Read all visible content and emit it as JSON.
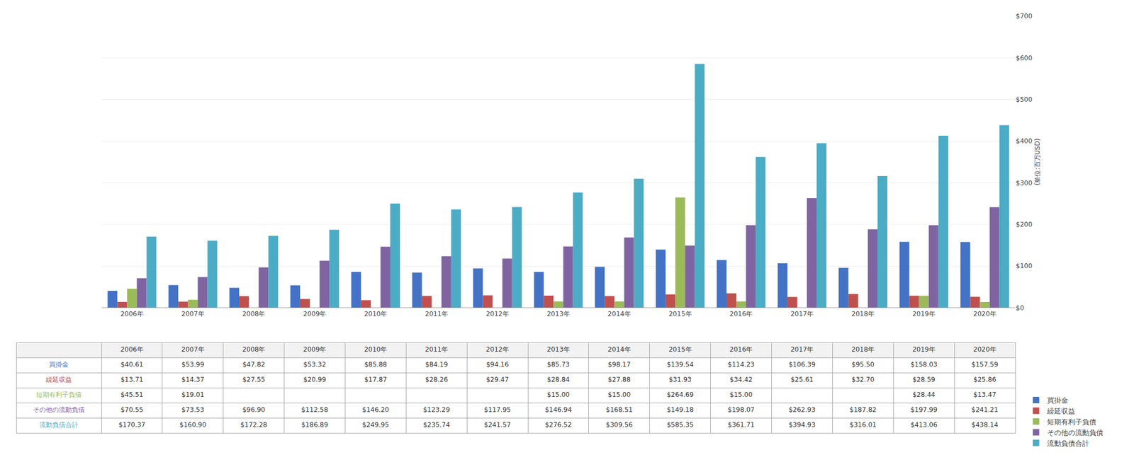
{
  "chart_data": {
    "type": "bar",
    "categories": [
      "2006年",
      "2007年",
      "2008年",
      "2009年",
      "2010年",
      "2011年",
      "2012年",
      "2013年",
      "2014年",
      "2015年",
      "2016年",
      "2017年",
      "2018年",
      "2019年",
      "2020年"
    ],
    "series": [
      {
        "name": "買掛金",
        "color": "#4472C4",
        "values": [
          40.61,
          53.99,
          47.82,
          53.32,
          85.88,
          84.19,
          94.16,
          85.73,
          98.17,
          139.54,
          114.23,
          106.39,
          95.5,
          158.03,
          157.59
        ],
        "value_labels": [
          "$40.61",
          "$53.99",
          "$47.82",
          "$53.32",
          "$85.88",
          "$84.19",
          "$94.16",
          "$85.73",
          "$98.17",
          "$139.54",
          "$114.23",
          "$106.39",
          "$95.50",
          "$158.03",
          "$157.59"
        ]
      },
      {
        "name": "繰延収益",
        "color": "#C0504D",
        "values": [
          13.71,
          14.37,
          27.55,
          20.99,
          17.87,
          28.26,
          29.47,
          28.84,
          27.88,
          31.93,
          34.42,
          25.61,
          32.7,
          28.59,
          25.86
        ],
        "value_labels": [
          "$13.71",
          "$14.37",
          "$27.55",
          "$20.99",
          "$17.87",
          "$28.26",
          "$29.47",
          "$28.84",
          "$27.88",
          "$31.93",
          "$34.42",
          "$25.61",
          "$32.70",
          "$28.59",
          "$25.86"
        ]
      },
      {
        "name": "短期有利子負債",
        "color": "#9BBB59",
        "values": [
          45.51,
          19.01,
          0.0,
          0.0,
          0.0,
          0.0,
          0.0,
          15.0,
          15.0,
          264.69,
          15.0,
          0.0,
          0.0,
          28.44,
          13.47
        ],
        "value_labels": [
          "$45.51",
          "$19.01",
          null,
          null,
          null,
          null,
          null,
          "$15.00",
          "$15.00",
          "$264.69",
          "$15.00",
          null,
          null,
          "$28.44",
          "$13.47"
        ]
      },
      {
        "name": "その他の流動負債",
        "color": "#8064A2",
        "values": [
          70.55,
          73.53,
          96.9,
          112.58,
          146.2,
          123.29,
          117.95,
          146.94,
          168.51,
          149.18,
          198.07,
          262.93,
          187.82,
          197.99,
          241.21
        ],
        "value_labels": [
          "$70.55",
          "$73.53",
          "$96.90",
          "$112.58",
          "$146.20",
          "$123.29",
          "$117.95",
          "$146.94",
          "$168.51",
          "$149.18",
          "$198.07",
          "$262.93",
          "$187.82",
          "$197.99",
          "$241.21"
        ]
      },
      {
        "name": "流動負債合計",
        "color": "#4BACC6",
        "values": [
          170.37,
          160.9,
          172.28,
          186.89,
          249.95,
          235.74,
          241.57,
          276.52,
          309.56,
          585.35,
          361.71,
          394.93,
          316.01,
          413.06,
          438.14
        ],
        "value_labels": [
          "$170.37",
          "$160.90",
          "$172.28",
          "$186.89",
          "$249.95",
          "$235.74",
          "$241.57",
          "$276.52",
          "$309.56",
          "$585.35",
          "$361.71",
          "$394.93",
          "$316.01",
          "$413.06",
          "$438.14"
        ]
      }
    ],
    "ylabel": "(単位:百万USD)",
    "ylim": [
      0,
      700
    ],
    "yticks": [
      {
        "value": 0,
        "label": "$0"
      },
      {
        "value": 100,
        "label": "$100"
      },
      {
        "value": 200,
        "label": "$200"
      },
      {
        "value": 300,
        "label": "$300"
      },
      {
        "value": 400,
        "label": "$400"
      },
      {
        "value": 500,
        "label": "$500"
      },
      {
        "value": 600,
        "label": "$600"
      },
      {
        "value": 700,
        "label": "$700"
      }
    ],
    "grid": true,
    "legend": "right"
  }
}
